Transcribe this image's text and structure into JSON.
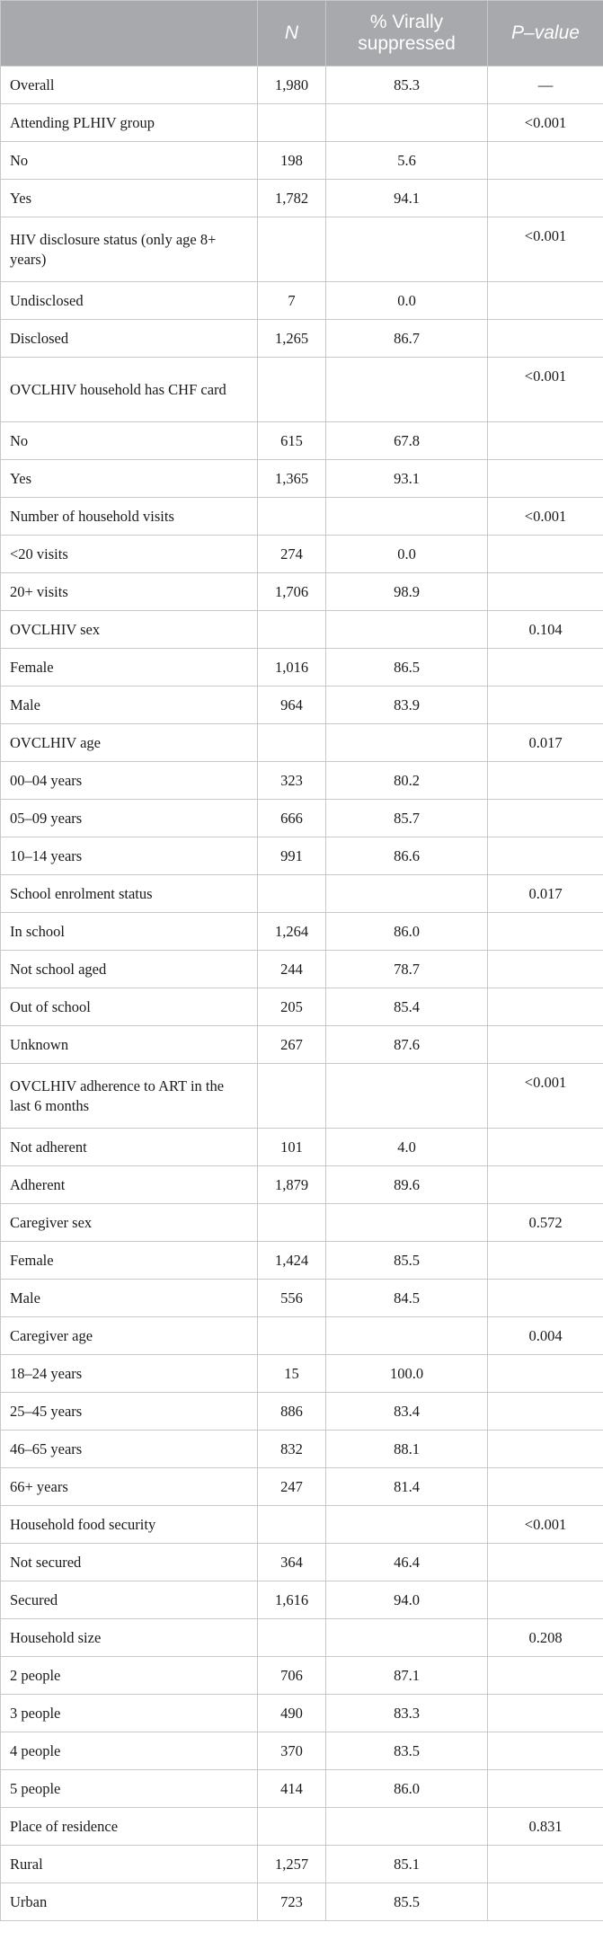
{
  "table": {
    "headers": {
      "col0": "",
      "col1": "N",
      "col2": "% Virally suppressed",
      "col3": "P–value"
    },
    "rows": [
      {
        "label": "Overall",
        "n": "1,980",
        "pct": "85.3",
        "p": "—"
      },
      {
        "label": "Attending PLHIV group",
        "n": "",
        "pct": "",
        "p": "<0.001"
      },
      {
        "label": "No",
        "n": "198",
        "pct": "5.6",
        "p": ""
      },
      {
        "label": "Yes",
        "n": "1,782",
        "pct": "94.1",
        "p": ""
      },
      {
        "label": "HIV disclosure status (only age 8+ years)",
        "n": "",
        "pct": "",
        "p": "<0.001"
      },
      {
        "label": "Undisclosed",
        "n": "7",
        "pct": "0.0",
        "p": ""
      },
      {
        "label": "Disclosed",
        "n": "1,265",
        "pct": "86.7",
        "p": ""
      },
      {
        "label": "OVCLHIV household has CHF card",
        "n": "",
        "pct": "",
        "p": "<0.001"
      },
      {
        "label": "No",
        "n": "615",
        "pct": "67.8",
        "p": ""
      },
      {
        "label": "Yes",
        "n": "1,365",
        "pct": "93.1",
        "p": ""
      },
      {
        "label": "Number of household visits",
        "n": "",
        "pct": "",
        "p": "<0.001"
      },
      {
        "label": "<20 visits",
        "n": "274",
        "pct": "0.0",
        "p": ""
      },
      {
        "label": "20+ visits",
        "n": "1,706",
        "pct": "98.9",
        "p": ""
      },
      {
        "label": "OVCLHIV sex",
        "n": "",
        "pct": "",
        "p": "0.104"
      },
      {
        "label": "Female",
        "n": "1,016",
        "pct": "86.5",
        "p": ""
      },
      {
        "label": "Male",
        "n": "964",
        "pct": "83.9",
        "p": ""
      },
      {
        "label": "OVCLHIV age",
        "n": "",
        "pct": "",
        "p": "0.017"
      },
      {
        "label": "00–04 years",
        "n": "323",
        "pct": "80.2",
        "p": ""
      },
      {
        "label": "05–09 years",
        "n": "666",
        "pct": "85.7",
        "p": ""
      },
      {
        "label": "10–14 years",
        "n": "991",
        "pct": "86.6",
        "p": ""
      },
      {
        "label": "School enrolment status",
        "n": "",
        "pct": "",
        "p": "0.017"
      },
      {
        "label": "In school",
        "n": "1,264",
        "pct": "86.0",
        "p": ""
      },
      {
        "label": "Not school aged",
        "n": "244",
        "pct": "78.7",
        "p": ""
      },
      {
        "label": "Out of school",
        "n": "205",
        "pct": "85.4",
        "p": ""
      },
      {
        "label": "Unknown",
        "n": "267",
        "pct": "87.6",
        "p": ""
      },
      {
        "label": "OVCLHIV adherence to ART in the last 6 months",
        "n": "",
        "pct": "",
        "p": "<0.001"
      },
      {
        "label": "Not adherent",
        "n": "101",
        "pct": "4.0",
        "p": ""
      },
      {
        "label": "Adherent",
        "n": "1,879",
        "pct": "89.6",
        "p": ""
      },
      {
        "label": "Caregiver sex",
        "n": "",
        "pct": "",
        "p": "0.572"
      },
      {
        "label": "Female",
        "n": "1,424",
        "pct": "85.5",
        "p": ""
      },
      {
        "label": "Male",
        "n": "556",
        "pct": "84.5",
        "p": ""
      },
      {
        "label": "Caregiver age",
        "n": "",
        "pct": "",
        "p": "0.004"
      },
      {
        "label": "18–24 years",
        "n": "15",
        "pct": "100.0",
        "p": ""
      },
      {
        "label": "25–45 years",
        "n": "886",
        "pct": "83.4",
        "p": ""
      },
      {
        "label": "46–65 years",
        "n": "832",
        "pct": "88.1",
        "p": ""
      },
      {
        "label": "66+ years",
        "n": "247",
        "pct": "81.4",
        "p": ""
      },
      {
        "label": "Household food security",
        "n": "",
        "pct": "",
        "p": "<0.001"
      },
      {
        "label": "Not secured",
        "n": "364",
        "pct": "46.4",
        "p": ""
      },
      {
        "label": "Secured",
        "n": "1,616",
        "pct": "94.0",
        "p": ""
      },
      {
        "label": "Household size",
        "n": "",
        "pct": "",
        "p": "0.208"
      },
      {
        "label": "2 people",
        "n": "706",
        "pct": "87.1",
        "p": ""
      },
      {
        "label": "3 people",
        "n": "490",
        "pct": "83.3",
        "p": ""
      },
      {
        "label": "4 people",
        "n": "370",
        "pct": "83.5",
        "p": ""
      },
      {
        "label": "5 people",
        "n": "414",
        "pct": "86.0",
        "p": ""
      },
      {
        "label": "Place of residence",
        "n": "",
        "pct": "",
        "p": "0.831"
      },
      {
        "label": "Rural",
        "n": "1,257",
        "pct": "85.1",
        "p": ""
      },
      {
        "label": "Urban",
        "n": "723",
        "pct": "85.5",
        "p": ""
      }
    ]
  }
}
